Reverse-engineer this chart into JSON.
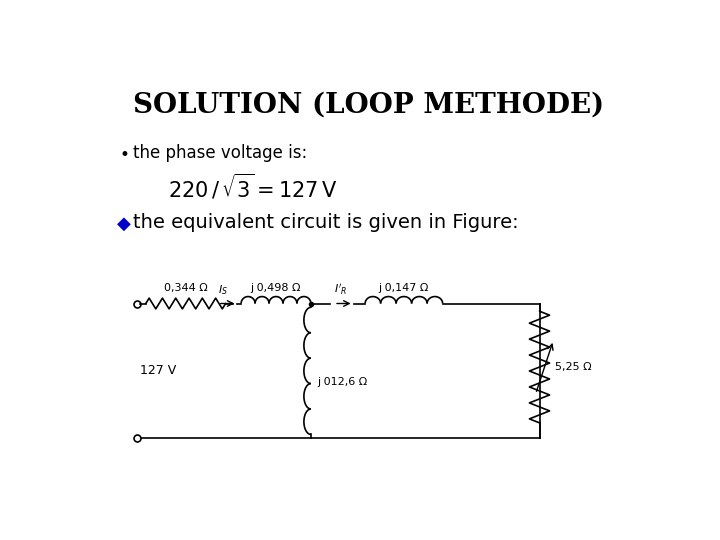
{
  "title": "SOLUTION (LOOP METHODE)",
  "bullet1": "the phase voltage is:",
  "bullet2_text": "the equivalent circuit is given in Figure:",
  "circuit": {
    "r1_label": "0,344 Ω",
    "l1_label": "j 0,498 Ω",
    "l2_label": "j 0,147 Ω",
    "lm_label": "j 012,6 Ω",
    "r2_label": "5,25 Ω",
    "v_label": "127 V",
    "is_label": "I_S",
    "ir_label": "I_R"
  },
  "background_color": "#ffffff",
  "title_fontsize": 20,
  "text_fontsize": 12,
  "formula_fontsize": 15,
  "circuit_fontsize": 8,
  "diamond_color": "#0000cc",
  "text_color": "#000000"
}
